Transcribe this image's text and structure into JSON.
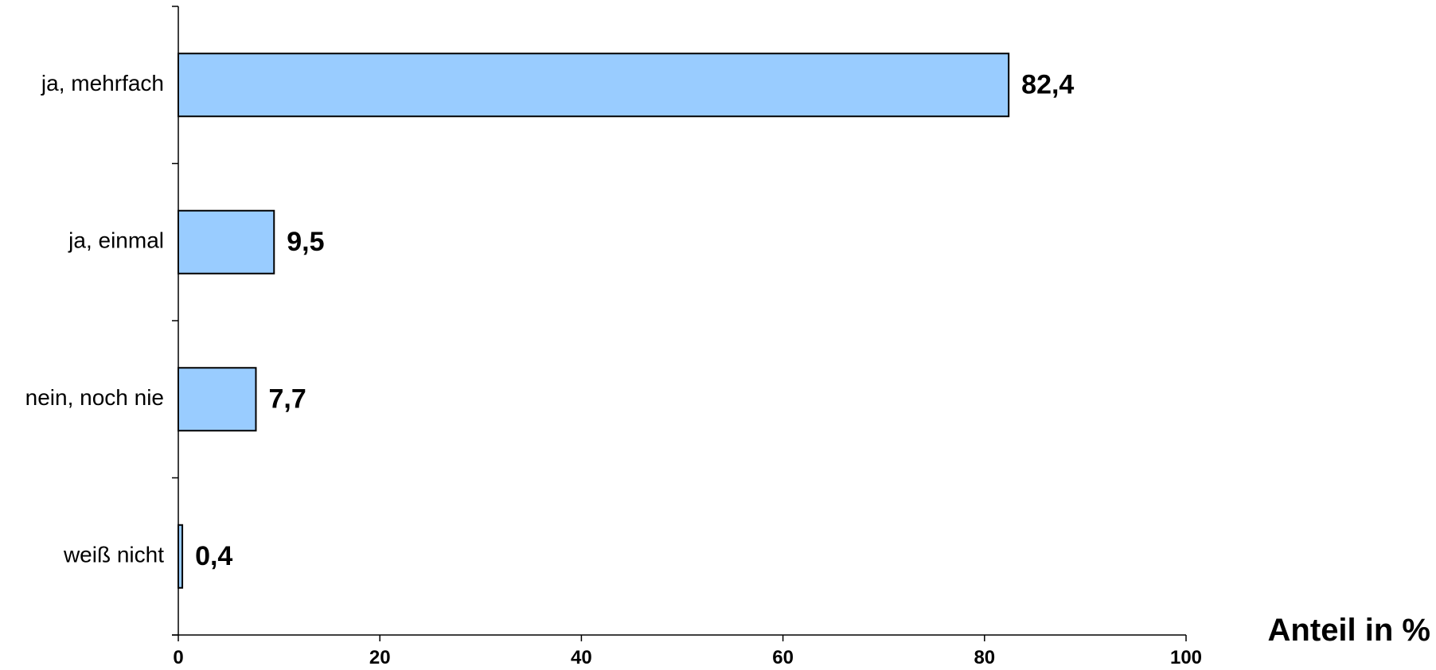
{
  "chart_data": {
    "type": "bar",
    "orientation": "horizontal",
    "categories": [
      "ja, mehrfach",
      "ja, einmal",
      "nein, noch nie",
      "weiß nicht"
    ],
    "values": [
      82.4,
      9.5,
      7.7,
      0.4
    ],
    "value_labels": [
      "82,4",
      "9,5",
      "7,7",
      "0,4"
    ],
    "xlabel": "Anteil in %",
    "xlim": [
      0,
      100
    ],
    "x_ticks": [
      0,
      20,
      40,
      60,
      80,
      100
    ],
    "x_tick_labels": [
      "0",
      "20",
      "40",
      "60",
      "80",
      "100"
    ],
    "grid": false,
    "legend": "none",
    "bar_color": "#99ccff",
    "bar_edge_color": "#000000"
  }
}
